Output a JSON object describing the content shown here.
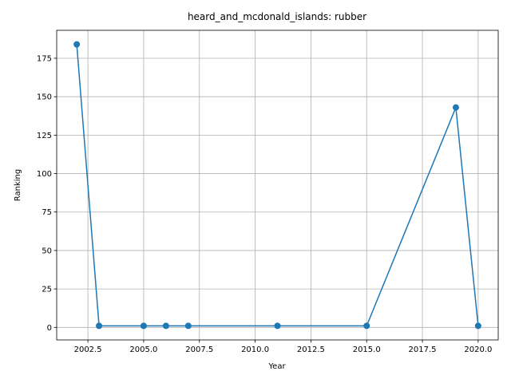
{
  "chart_data": {
    "type": "line",
    "title": "heard_and_mcdonald_islands: rubber",
    "xlabel": "Year",
    "ylabel": "Ranking",
    "x": [
      2002,
      2003,
      2005,
      2006,
      2007,
      2011,
      2015,
      2019,
      2020
    ],
    "series": [
      {
        "values": [
          184,
          1,
          1,
          1,
          1,
          1,
          1,
          143,
          1
        ]
      }
    ],
    "xlim": [
      2001.1,
      2020.9
    ],
    "ylim": [
      -8.15,
      193.15
    ],
    "xticks": [
      2002.5,
      2005.0,
      2007.5,
      2010.0,
      2012.5,
      2015.0,
      2017.5,
      2020.0
    ],
    "xtick_labels": [
      "2002.5",
      "2005.0",
      "2007.5",
      "2010.0",
      "2012.5",
      "2015.0",
      "2017.5",
      "2020.0"
    ],
    "yticks": [
      0,
      25,
      50,
      75,
      100,
      125,
      150,
      175
    ],
    "ytick_labels": [
      "0",
      "25",
      "50",
      "75",
      "100",
      "125",
      "150",
      "175"
    ],
    "grid": true,
    "legend": "none",
    "color": "#1f77b4"
  }
}
